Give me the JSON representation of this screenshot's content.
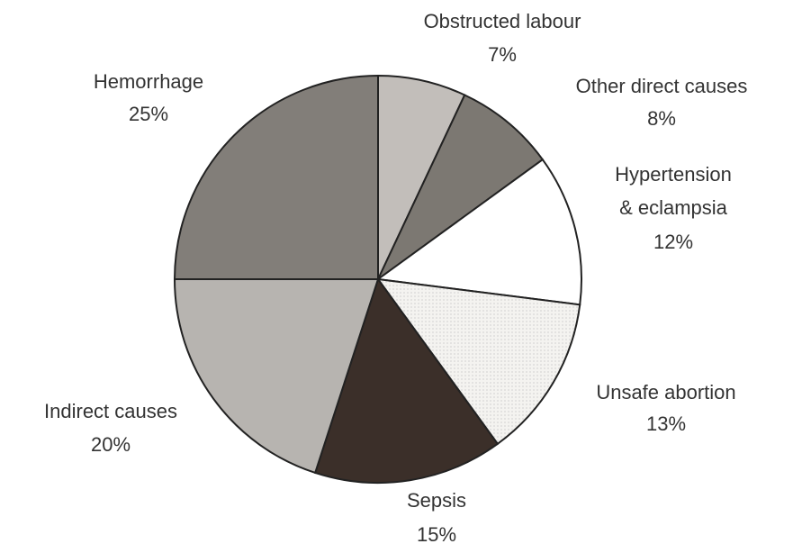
{
  "chart_data": {
    "type": "pie",
    "categories": [
      "Obstructed labour",
      "Other direct causes",
      "Hypertension & eclampsia",
      "Unsafe abortion",
      "Sepsis",
      "Indirect causes",
      "Hemorrhage"
    ],
    "values": [
      7,
      8,
      12,
      13,
      15,
      20,
      25
    ],
    "value_labels": [
      "7%",
      "8%",
      "12%",
      "13%",
      "15%",
      "20%",
      "25%"
    ],
    "colors": [
      "#c2beba",
      "#7c7872",
      "#ffffff",
      "#f1f0ed",
      "#3b2f29",
      "#b7b4b0",
      "#827e79"
    ]
  }
}
